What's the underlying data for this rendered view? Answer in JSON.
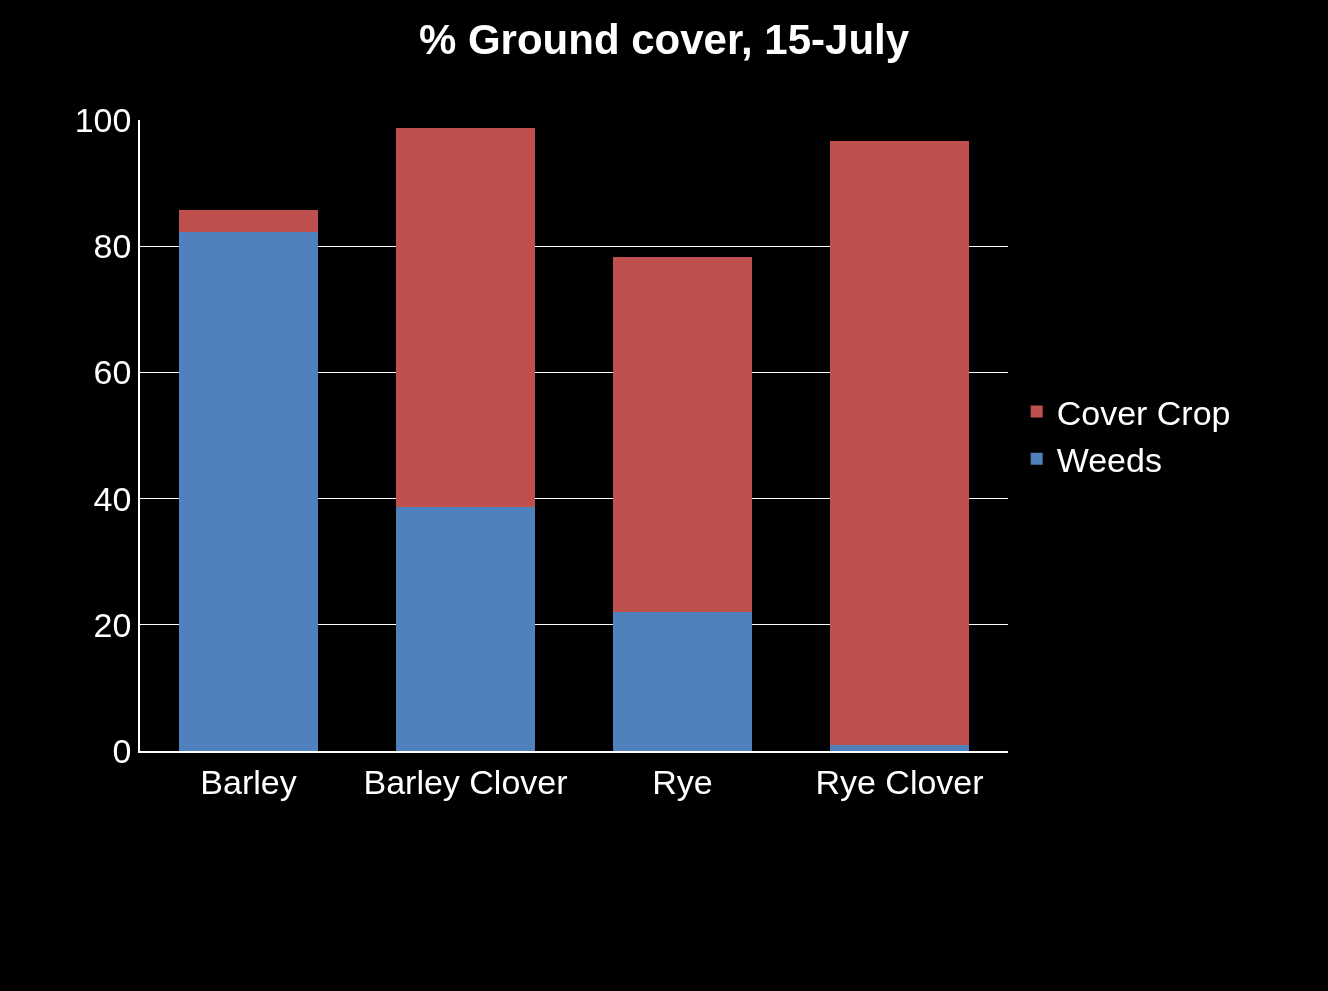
{
  "chart_data": {
    "type": "bar",
    "title": "% Ground cover, 15-July",
    "categories": [
      "Barley",
      "Barley Clover",
      "Rye",
      "Rye Clover"
    ],
    "series": [
      {
        "name": "Weeds",
        "color": "#4f81bd",
        "values": [
          82.3,
          38.7,
          22.0,
          1.0
        ]
      },
      {
        "name": "Cover Crop",
        "color": "#c0504d",
        "values": [
          3.4,
          60.0,
          56.3,
          95.6
        ]
      }
    ],
    "stacked": true,
    "ylim": [
      0,
      100
    ],
    "yticks": [
      0,
      20,
      40,
      60,
      80,
      100
    ],
    "grid": "y",
    "legend": "right"
  }
}
